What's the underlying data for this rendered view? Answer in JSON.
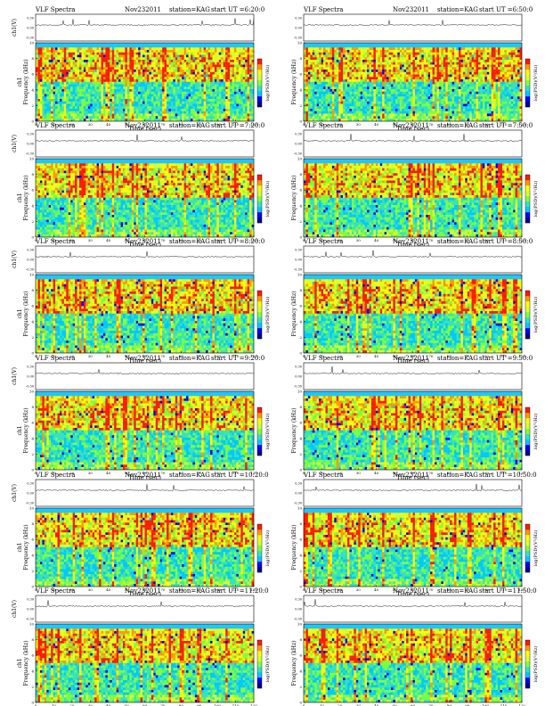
{
  "colors": {
    "colormap": [
      "#00008b",
      "#0000ff",
      "#00c8ff",
      "#35e0c8",
      "#7fff3a",
      "#d8ff2e",
      "#ffff00",
      "#ff9a00",
      "#ff1a00"
    ],
    "background_band": "#1ec8ff",
    "signal_line": "#222222"
  },
  "chart_data": [
    {
      "type": "heatmap",
      "title_left": "VLF Spectra",
      "date": "Nov232011",
      "station": "station=KAG",
      "start": "start UT =6:20:0",
      "waveform_ylabel": "ch1(V)",
      "ylabel": "Frequency (kHz)",
      "ylabel_prefix": "ch1",
      "colorbar_label": "log(PSD)(V²/Hz)",
      "xlabel": "Time (sec)",
      "xlim": [
        0,
        120
      ],
      "ylim": [
        0,
        10
      ],
      "xticks": [
        0,
        10,
        20,
        30,
        40,
        50,
        60,
        70,
        80,
        90,
        100,
        110,
        120
      ],
      "yticks": [
        0,
        2,
        4,
        6,
        8,
        10
      ],
      "waveform_ticks": [
        "0.30",
        "0.00",
        "-0.30"
      ]
    },
    {
      "type": "heatmap",
      "title_left": "VLF Spectra",
      "date": "Nov232011",
      "station": "station=KAG",
      "start": "start UT =6:50:0",
      "waveform_ylabel": "",
      "ylabel": "Frequency (kHz)",
      "ylabel_prefix": "",
      "colorbar_label": "log(PSD)(V²/Hz)",
      "xlabel": "Time (sec)",
      "xlim": [
        0,
        120
      ],
      "ylim": [
        0,
        10
      ],
      "xticks": [
        0,
        10,
        20,
        30,
        40,
        50,
        60,
        70,
        80,
        90,
        100,
        110,
        120
      ],
      "yticks": [
        0,
        2,
        4,
        6,
        8,
        10
      ],
      "waveform_ticks": [
        "0.30",
        "0.00",
        "-0.30"
      ]
    },
    {
      "type": "heatmap",
      "title_left": "VLF Spectra",
      "date": "Nov232011",
      "station": "station=KAG",
      "start": "start UT =7:20:0",
      "waveform_ylabel": "ch1(V)",
      "ylabel": "Frequency (kHz)",
      "ylabel_prefix": "ch1",
      "colorbar_label": "log(PSD)(V²/Hz)",
      "xlabel": "Time (sec)",
      "xlim": [
        0,
        120
      ],
      "ylim": [
        0,
        10
      ],
      "xticks": [
        0,
        10,
        20,
        30,
        40,
        50,
        60,
        70,
        80,
        90,
        100,
        110,
        120
      ],
      "yticks": [
        0,
        2,
        4,
        6,
        8,
        10
      ],
      "waveform_ticks": [
        "0.30",
        "0.00",
        "-0.30"
      ]
    },
    {
      "type": "heatmap",
      "title_left": "VLF Spectra",
      "date": "Nov232011",
      "station": "station=KAG",
      "start": "start UT =7:50:0",
      "waveform_ylabel": "",
      "ylabel": "Frequency (kHz)",
      "ylabel_prefix": "",
      "colorbar_label": "log(PSD)(V²/Hz)",
      "xlabel": "Time (sec)",
      "xlim": [
        0,
        120
      ],
      "ylim": [
        0,
        10
      ],
      "xticks": [
        0,
        10,
        20,
        30,
        40,
        50,
        60,
        70,
        80,
        90,
        100,
        110,
        120
      ],
      "yticks": [
        0,
        2,
        4,
        6,
        8,
        10
      ],
      "waveform_ticks": [
        "0.30",
        "0.00",
        "-0.30"
      ]
    },
    {
      "type": "heatmap",
      "title_left": "VLF Spectra",
      "date": "Nov232011",
      "station": "station=KAG",
      "start": "start UT =8:20:0",
      "waveform_ylabel": "ch1(V)",
      "ylabel": "Frequency (kHz)",
      "ylabel_prefix": "ch1",
      "colorbar_label": "log(PSD)(V²/Hz)",
      "xlabel": "Time (sec)",
      "xlim": [
        0,
        120
      ],
      "ylim": [
        0,
        10
      ],
      "xticks": [
        0,
        10,
        20,
        30,
        40,
        50,
        60,
        70,
        80,
        90,
        100,
        110,
        120
      ],
      "yticks": [
        0,
        2,
        4,
        6,
        8,
        10
      ],
      "waveform_ticks": [
        "0.30",
        "0.00",
        "-0.30"
      ]
    },
    {
      "type": "heatmap",
      "title_left": "VLF Spectra",
      "date": "Nov232011",
      "station": "station=KAG",
      "start": "start UT =8:50:0",
      "waveform_ylabel": "",
      "ylabel": "Frequency (kHz)",
      "ylabel_prefix": "",
      "colorbar_label": "log(PSD)(V²/Hz)",
      "xlabel": "Time (sec)",
      "xlim": [
        0,
        120
      ],
      "ylim": [
        0,
        10
      ],
      "xticks": [
        0,
        10,
        20,
        30,
        40,
        50,
        60,
        70,
        80,
        90,
        100,
        110,
        120
      ],
      "yticks": [
        0,
        2,
        4,
        6,
        8,
        10
      ],
      "waveform_ticks": [
        "0.30",
        "0.00",
        "-0.30"
      ]
    },
    {
      "type": "heatmap",
      "title_left": "VLF Spectra",
      "date": "Nov232011",
      "station": "station=KAG",
      "start": "start UT =9:20:0",
      "waveform_ylabel": "ch1(V)",
      "ylabel": "Frequency (kHz)",
      "ylabel_prefix": "ch1",
      "colorbar_label": "log(PSD)(V²/Hz)",
      "xlabel": "Time (sec)",
      "xlim": [
        0,
        120
      ],
      "ylim": [
        0,
        10
      ],
      "xticks": [
        0,
        10,
        20,
        30,
        40,
        50,
        60,
        70,
        80,
        90,
        100,
        110,
        120
      ],
      "yticks": [
        0,
        2,
        4,
        6,
        8,
        10
      ],
      "waveform_ticks": [
        "0.30",
        "0.00",
        "-0.30"
      ]
    },
    {
      "type": "heatmap",
      "title_left": "VLF Spectra",
      "date": "Nov232011",
      "station": "station=KAG",
      "start": "start UT =9:50:0",
      "waveform_ylabel": "",
      "ylabel": "Frequency (kHz)",
      "ylabel_prefix": "",
      "colorbar_label": "log(PSD)(V²/Hz)",
      "xlabel": "Time (sec)",
      "xlim": [
        0,
        120
      ],
      "ylim": [
        0,
        10
      ],
      "xticks": [
        0,
        10,
        20,
        30,
        40,
        50,
        60,
        70,
        80,
        90,
        100,
        110,
        120
      ],
      "yticks": [
        0,
        2,
        4,
        6,
        8,
        10
      ],
      "waveform_ticks": [
        "0.30",
        "0.00",
        "-0.30"
      ]
    },
    {
      "type": "heatmap",
      "title_left": "VLF Spectra",
      "date": "Nov232011",
      "station": "station=KAG",
      "start": "start UT =10:20:0",
      "waveform_ylabel": "ch1(V)",
      "ylabel": "Frequency (kHz)",
      "ylabel_prefix": "ch1",
      "colorbar_label": "log(PSD)(V²/Hz)",
      "xlabel": "Time (sec)",
      "xlim": [
        0,
        120
      ],
      "ylim": [
        0,
        10
      ],
      "xticks": [
        0,
        10,
        20,
        30,
        40,
        50,
        60,
        70,
        80,
        90,
        100,
        110,
        120
      ],
      "yticks": [
        0,
        2,
        4,
        6,
        8,
        10
      ],
      "waveform_ticks": [
        "0.30",
        "0.00",
        "-0.30"
      ]
    },
    {
      "type": "heatmap",
      "title_left": "VLF Spectra",
      "date": "Nov232011",
      "station": "station=KAG",
      "start": "start UT =10:50:0",
      "waveform_ylabel": "",
      "ylabel": "Frequency (kHz)",
      "ylabel_prefix": "",
      "colorbar_label": "log(PSD)(V²/Hz)",
      "xlabel": "Time (sec)",
      "xlim": [
        0,
        120
      ],
      "ylim": [
        0,
        10
      ],
      "xticks": [
        0,
        10,
        20,
        30,
        40,
        50,
        60,
        70,
        80,
        90,
        100,
        110,
        120
      ],
      "yticks": [
        0,
        2,
        4,
        6,
        8,
        10
      ],
      "waveform_ticks": [
        "0.30",
        "0.00",
        "-0.30"
      ]
    },
    {
      "type": "heatmap",
      "title_left": "VLF Spectra",
      "date": "Nov232011",
      "station": "station=KAG",
      "start": "start UT =11:20:0",
      "waveform_ylabel": "ch1(V)",
      "ylabel": "Frequency (kHz)",
      "ylabel_prefix": "ch1",
      "colorbar_label": "log(PSD)(V²/Hz)",
      "xlabel": "Time (sec)",
      "xlim": [
        0,
        120
      ],
      "ylim": [
        0,
        10
      ],
      "xticks": [
        0,
        10,
        20,
        30,
        40,
        50,
        60,
        70,
        80,
        90,
        100,
        110,
        120
      ],
      "yticks": [
        0,
        2,
        4,
        6,
        8,
        10
      ],
      "waveform_ticks": [
        "0.30",
        "0.00",
        "-0.30"
      ]
    },
    {
      "type": "heatmap",
      "title_left": "VLF Spectra",
      "date": "Nov232011",
      "station": "station=KAG",
      "start": "start UT =11:50:0",
      "waveform_ylabel": "",
      "ylabel": "Frequency (kHz)",
      "ylabel_prefix": "",
      "colorbar_label": "log(PSD)(V²/Hz)",
      "xlabel": "Time (sec)",
      "xlim": [
        0,
        120
      ],
      "ylim": [
        0,
        10
      ],
      "xticks": [
        0,
        10,
        20,
        30,
        40,
        50,
        60,
        70,
        80,
        90,
        100,
        110,
        120
      ],
      "yticks": [
        0,
        2,
        4,
        6,
        8,
        10
      ],
      "waveform_ticks": [
        "0.30",
        "0.00",
        "-0.30"
      ]
    }
  ]
}
